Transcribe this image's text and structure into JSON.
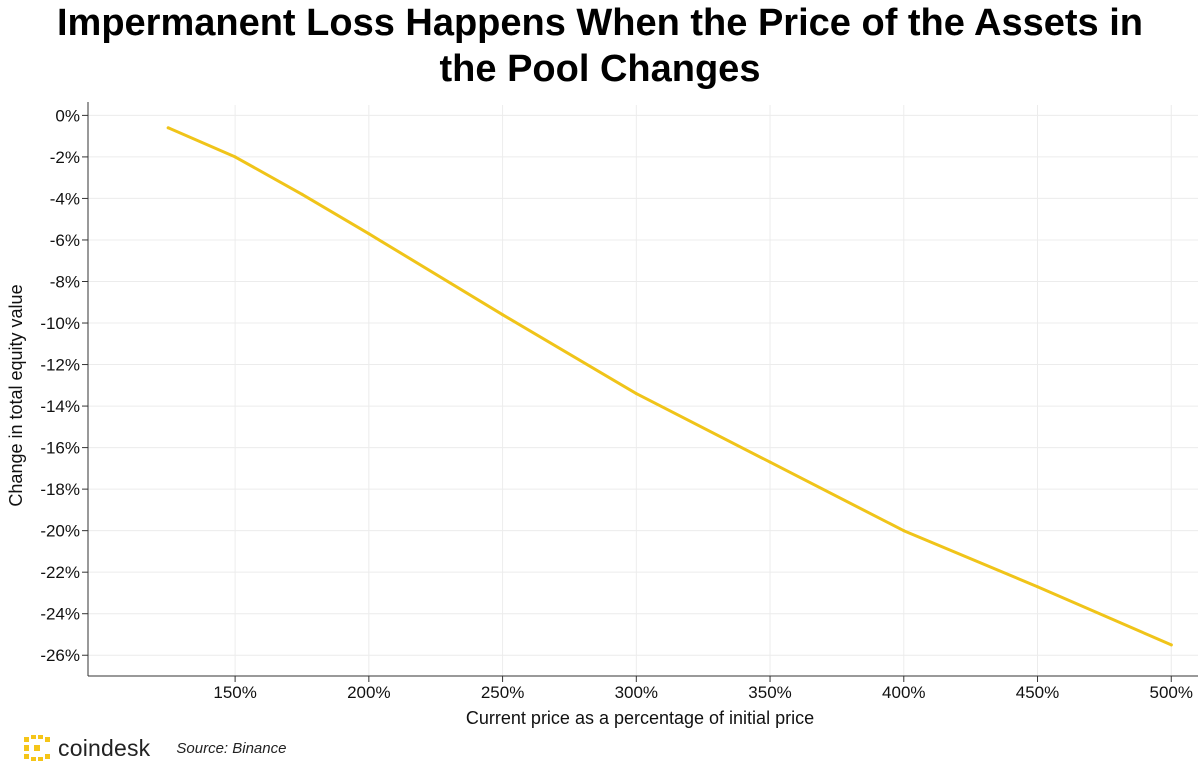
{
  "title": "Impermanent Loss Happens When the Price of the Assets in the Pool Changes",
  "chart_data": {
    "type": "line",
    "title": "Impermanent Loss Happens When the Price of the Assets in the Pool Changes",
    "xlabel": "Current price as a percentage of initial price",
    "ylabel": "Change in total equity value",
    "x": [
      125,
      150,
      175,
      200,
      250,
      300,
      350,
      400,
      450,
      500
    ],
    "series": [
      {
        "name": "Impermanent loss",
        "color": "#F0C419",
        "values": [
          -0.6,
          -2.0,
          -3.8,
          -5.7,
          -9.6,
          -13.4,
          -16.7,
          -20.0,
          -22.7,
          -25.5
        ]
      }
    ],
    "xlim": [
      95,
      510
    ],
    "ylim": [
      -27,
      0.5
    ],
    "x_ticks": [
      150,
      200,
      250,
      300,
      350,
      400,
      450,
      500
    ],
    "x_tick_labels": [
      "150%",
      "200%",
      "250%",
      "300%",
      "350%",
      "400%",
      "450%",
      "500%"
    ],
    "y_ticks": [
      0,
      -2,
      -4,
      -6,
      -8,
      -10,
      -12,
      -14,
      -16,
      -18,
      -20,
      -22,
      -24,
      -26
    ],
    "y_tick_labels": [
      "0%",
      "-2%",
      "-4%",
      "-6%",
      "-8%",
      "-10%",
      "-12%",
      "-14%",
      "-16%",
      "-18%",
      "-20%",
      "-22%",
      "-24%",
      "-26%"
    ],
    "grid": true,
    "legend": "none"
  },
  "footer": {
    "brand": "coindesk",
    "source": "Source: Binance",
    "logo_color": "#F5C518"
  }
}
